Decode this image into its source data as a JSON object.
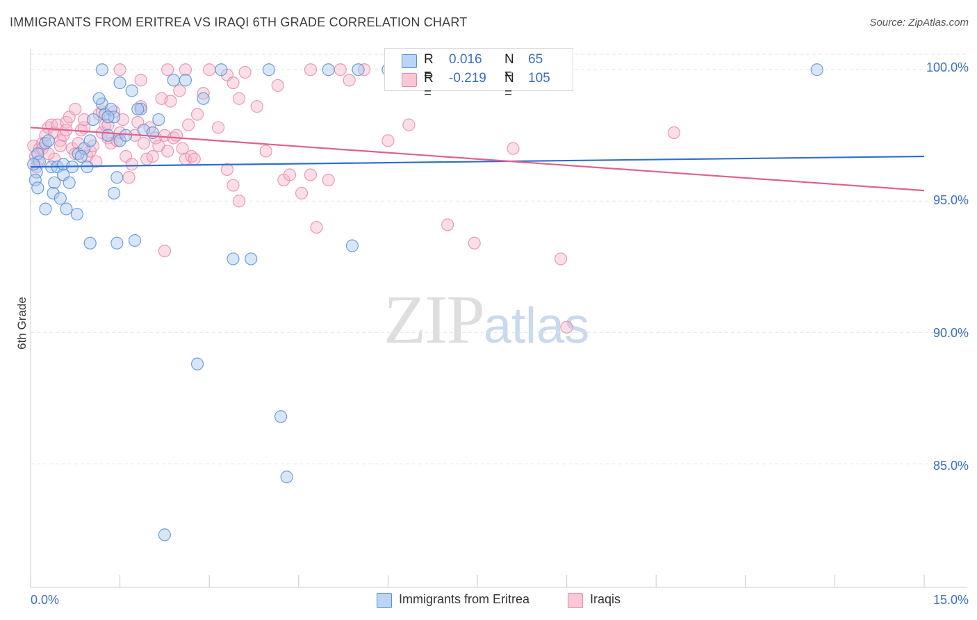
{
  "header": {
    "title": "IMMIGRANTS FROM ERITREA VS IRAQI 6TH GRADE CORRELATION CHART",
    "source": "Source: ZipAtlas.com"
  },
  "watermark": {
    "zip": "ZIP",
    "atlas": "atlas"
  },
  "legend": {
    "rows": [
      {
        "r_label": "R =",
        "r_value": "0.016",
        "n_label": "N =",
        "n_value": "65"
      },
      {
        "r_label": "R =",
        "r_value": "-0.219",
        "n_label": "N =",
        "n_value": "105"
      }
    ]
  },
  "bottom_legend": {
    "series1": "Immigrants from Eritrea",
    "series2": "Iraqis"
  },
  "axes": {
    "x_min_label": "0.0%",
    "x_max_label": "15.0%",
    "y_label": "6th Grade",
    "y_ticks": [
      "100.0%",
      "95.0%",
      "90.0%",
      "85.0%"
    ]
  },
  "colors": {
    "blue_fill": "#a9c8ef",
    "blue_stroke": "#5b8fd6",
    "blue_line": "#2f6fca",
    "pink_fill": "#f6b8cc",
    "pink_stroke": "#e88aa8",
    "pink_line": "#e0608e",
    "tick_text": "#3a6fc4",
    "grid": "#e4e4e4"
  },
  "chart_data": {
    "type": "scatter",
    "title": "IMMIGRANTS FROM ERITREA VS IRAQI 6TH GRADE CORRELATION CHART",
    "xlabel": "",
    "ylabel": "6th Grade",
    "xlim": [
      0,
      15
    ],
    "ylim": [
      80.3,
      100.8
    ],
    "y_ticks": [
      85,
      90,
      95,
      100
    ],
    "series": [
      {
        "name": "Immigrants from Eritrea",
        "R": 0.016,
        "N": 65,
        "trend": [
          [
            0,
            96.3
          ],
          [
            15,
            96.7
          ]
        ],
        "points": [
          [
            0.12,
            96.8
          ],
          [
            0.1,
            96.1
          ],
          [
            0.15,
            96.5
          ],
          [
            0.08,
            95.8
          ],
          [
            0.12,
            95.5
          ],
          [
            0.25,
            97.2
          ],
          [
            0.3,
            97.3
          ],
          [
            0.35,
            96.3
          ],
          [
            0.45,
            96.3
          ],
          [
            0.55,
            96.0
          ],
          [
            0.4,
            95.7
          ],
          [
            0.65,
            95.7
          ],
          [
            0.38,
            95.3
          ],
          [
            0.5,
            95.1
          ],
          [
            0.6,
            94.7
          ],
          [
            0.78,
            94.5
          ],
          [
            0.25,
            94.7
          ],
          [
            0.95,
            96.3
          ],
          [
            0.8,
            96.8
          ],
          [
            0.9,
            97.0
          ],
          [
            1.0,
            97.3
          ],
          [
            0.85,
            96.7
          ],
          [
            1.05,
            98.1
          ],
          [
            1.2,
            98.7
          ],
          [
            1.25,
            98.3
          ],
          [
            1.3,
            97.5
          ],
          [
            1.35,
            98.5
          ],
          [
            1.4,
            98.2
          ],
          [
            1.5,
            97.3
          ],
          [
            1.15,
            98.9
          ],
          [
            1.4,
            95.3
          ],
          [
            1.0,
            93.4
          ],
          [
            1.45,
            93.4
          ],
          [
            1.75,
            93.5
          ],
          [
            1.45,
            95.9
          ],
          [
            1.6,
            97.5
          ],
          [
            1.85,
            98.5
          ],
          [
            1.9,
            97.7
          ],
          [
            2.05,
            97.6
          ],
          [
            2.15,
            98.1
          ],
          [
            1.7,
            99.2
          ],
          [
            1.5,
            99.5
          ],
          [
            1.8,
            98.5
          ],
          [
            2.4,
            99.6
          ],
          [
            2.6,
            99.6
          ],
          [
            2.9,
            98.9
          ],
          [
            3.2,
            100.0
          ],
          [
            3.4,
            92.8
          ],
          [
            3.7,
            92.8
          ],
          [
            4.0,
            100.0
          ],
          [
            5.0,
            100.0
          ],
          [
            5.5,
            100.0
          ],
          [
            5.4,
            93.3
          ],
          [
            6.0,
            100.0
          ],
          [
            6.6,
            100.0
          ],
          [
            13.2,
            100.0
          ],
          [
            1.2,
            100.0
          ],
          [
            2.8,
            88.8
          ],
          [
            4.2,
            86.8
          ],
          [
            4.3,
            84.5
          ],
          [
            2.25,
            82.3
          ],
          [
            0.05,
            96.4
          ],
          [
            0.55,
            96.4
          ],
          [
            0.7,
            96.3
          ],
          [
            1.3,
            98.2
          ]
        ]
      },
      {
        "name": "Iraqis",
        "R": -0.219,
        "N": 105,
        "trend": [
          [
            0,
            97.8
          ],
          [
            15,
            95.4
          ]
        ],
        "points": [
          [
            0.05,
            97.1
          ],
          [
            0.08,
            96.7
          ],
          [
            0.1,
            96.3
          ],
          [
            0.12,
            96.5
          ],
          [
            0.15,
            97.0
          ],
          [
            0.2,
            97.2
          ],
          [
            0.25,
            97.5
          ],
          [
            0.3,
            97.8
          ],
          [
            0.35,
            97.9
          ],
          [
            0.4,
            97.6
          ],
          [
            0.45,
            97.9
          ],
          [
            0.5,
            97.3
          ],
          [
            0.55,
            97.5
          ],
          [
            0.6,
            98.0
          ],
          [
            0.65,
            98.2
          ],
          [
            0.7,
            97.0
          ],
          [
            0.75,
            96.8
          ],
          [
            0.8,
            97.2
          ],
          [
            0.85,
            97.7
          ],
          [
            0.9,
            97.8
          ],
          [
            0.95,
            96.7
          ],
          [
            1.0,
            96.9
          ],
          [
            1.05,
            97.1
          ],
          [
            1.1,
            96.5
          ],
          [
            0.75,
            98.5
          ],
          [
            1.15,
            98.3
          ],
          [
            1.2,
            97.6
          ],
          [
            1.25,
            97.9
          ],
          [
            1.3,
            97.4
          ],
          [
            1.35,
            97.2
          ],
          [
            1.4,
            98.4
          ],
          [
            1.45,
            97.3
          ],
          [
            1.5,
            97.6
          ],
          [
            1.55,
            98.1
          ],
          [
            1.6,
            96.7
          ],
          [
            1.65,
            95.9
          ],
          [
            1.7,
            96.4
          ],
          [
            1.75,
            97.5
          ],
          [
            1.8,
            98.0
          ],
          [
            1.85,
            98.6
          ],
          [
            1.9,
            97.2
          ],
          [
            1.95,
            96.6
          ],
          [
            2.0,
            97.8
          ],
          [
            2.05,
            96.7
          ],
          [
            2.1,
            97.4
          ],
          [
            2.15,
            97.1
          ],
          [
            2.2,
            98.9
          ],
          [
            2.25,
            97.5
          ],
          [
            2.3,
            96.9
          ],
          [
            2.35,
            98.8
          ],
          [
            2.4,
            97.4
          ],
          [
            2.45,
            97.5
          ],
          [
            2.5,
            99.2
          ],
          [
            2.55,
            97.0
          ],
          [
            2.6,
            96.6
          ],
          [
            2.65,
            97.9
          ],
          [
            2.7,
            96.7
          ],
          [
            2.8,
            98.3
          ],
          [
            2.9,
            99.1
          ],
          [
            3.0,
            100.0
          ],
          [
            3.15,
            97.8
          ],
          [
            3.3,
            99.8
          ],
          [
            3.4,
            99.5
          ],
          [
            3.5,
            98.9
          ],
          [
            3.6,
            99.9
          ],
          [
            3.3,
            96.2
          ],
          [
            3.4,
            95.6
          ],
          [
            3.5,
            95.0
          ],
          [
            3.95,
            96.9
          ],
          [
            4.15,
            99.4
          ],
          [
            4.25,
            95.8
          ],
          [
            4.35,
            96.0
          ],
          [
            4.55,
            95.3
          ],
          [
            4.7,
            96.0
          ],
          [
            4.8,
            94.0
          ],
          [
            5.0,
            95.8
          ],
          [
            5.2,
            100.0
          ],
          [
            5.35,
            99.6
          ],
          [
            6.0,
            97.3
          ],
          [
            6.35,
            97.9
          ],
          [
            7.0,
            94.1
          ],
          [
            7.45,
            93.4
          ],
          [
            8.1,
            97.0
          ],
          [
            8.4,
            100.0
          ],
          [
            8.35,
            100.0
          ],
          [
            8.9,
            92.8
          ],
          [
            9.0,
            90.2
          ],
          [
            10.8,
            97.6
          ],
          [
            2.25,
            93.1
          ],
          [
            1.5,
            100.0
          ],
          [
            1.85,
            99.6
          ],
          [
            2.6,
            100.0
          ],
          [
            4.7,
            100.0
          ],
          [
            5.6,
            100.0
          ],
          [
            0.4,
            96.6
          ],
          [
            0.9,
            98.1
          ],
          [
            1.3,
            97.9
          ],
          [
            0.6,
            97.7
          ],
          [
            2.3,
            100.0
          ],
          [
            3.8,
            98.6
          ],
          [
            1.2,
            98.4
          ],
          [
            0.2,
            97.0
          ],
          [
            0.3,
            96.8
          ],
          [
            0.5,
            97.1
          ],
          [
            2.75,
            96.6
          ]
        ]
      }
    ]
  }
}
